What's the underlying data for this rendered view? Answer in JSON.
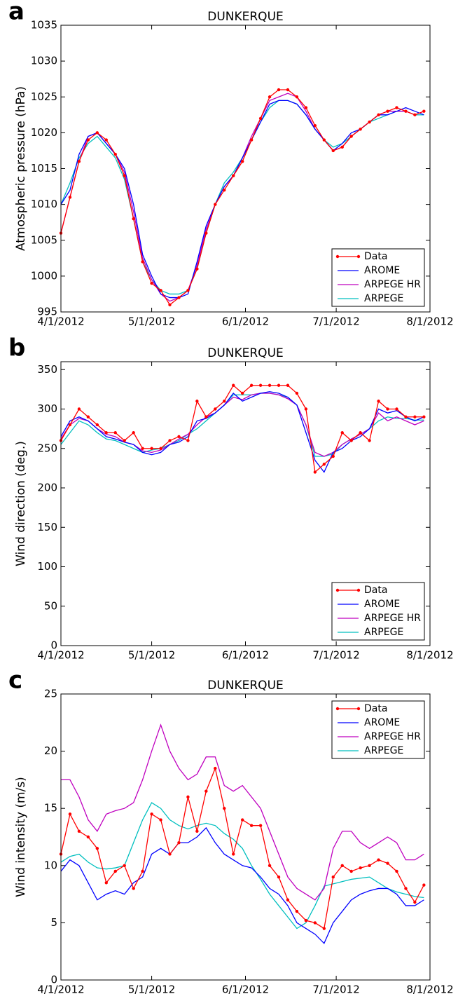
{
  "chart_data": [
    {
      "type": "line",
      "panel_label": "a",
      "title": "DUNKERQUE",
      "y_label": "Atmospheric pressure (hPa)",
      "x": [
        0,
        3,
        6,
        9,
        12,
        15,
        18,
        21,
        24,
        27,
        30,
        33,
        36,
        39,
        42,
        45,
        48,
        51,
        54,
        57,
        60,
        63,
        66,
        69,
        72,
        75,
        78,
        81,
        84,
        87,
        90,
        93,
        96,
        99,
        102,
        105,
        108,
        111,
        114,
        117,
        120
      ],
      "xlim": [
        0,
        122
      ],
      "xticks": [
        {
          "value": 0,
          "label": "4/1/2012"
        },
        {
          "value": 30,
          "label": "5/1/2012"
        },
        {
          "value": 61,
          "label": "6/1/2012"
        },
        {
          "value": 91,
          "label": "7/1/2012"
        },
        {
          "value": 122,
          "label": "8/1/2012"
        }
      ],
      "ylim": [
        995,
        1035
      ],
      "yticks": [
        995,
        1000,
        1005,
        1010,
        1015,
        1020,
        1025,
        1030,
        1035
      ],
      "grid": false,
      "legend": "lower right",
      "series": [
        {
          "name": "Data",
          "color": "#ff0000",
          "markers": true,
          "values": [
            1006,
            1011,
            1016,
            1019,
            1020,
            1019,
            1017,
            1014,
            1008,
            1002,
            999,
            998,
            996,
            997,
            998,
            1001,
            1006,
            1010,
            1012,
            1014,
            1016,
            1019,
            1022,
            1025,
            1026,
            1026,
            1025,
            1023.5,
            1021,
            1019,
            1017.5,
            1018,
            1019.5,
            1020.5,
            1021.5,
            1022.5,
            1023,
            1023.5,
            1023,
            1022.5,
            1023
          ]
        },
        {
          "name": "AROME",
          "color": "#0000ff",
          "values": [
            1010,
            1012,
            1017,
            1019.5,
            1020,
            1018.5,
            1017,
            1015,
            1010,
            1003,
            1000,
            997.5,
            997,
            997,
            997.5,
            1002,
            1007,
            1010,
            1012.5,
            1014,
            1016.5,
            1019,
            1021.5,
            1024,
            1024.5,
            1024.5,
            1024,
            1022.5,
            1020.5,
            1019,
            1017.5,
            1018.5,
            1020,
            1020.5,
            1021.5,
            1022.5,
            1022.5,
            1023,
            1023.5,
            1023,
            1022.5
          ]
        },
        {
          "name": "ARPEGE HR",
          "color": "#bf00bf",
          "values": [
            1006,
            1011,
            1016,
            1019.5,
            1020,
            1018.5,
            1017,
            1014.5,
            1009,
            1002.5,
            999.5,
            997.5,
            996.5,
            997,
            998,
            1001.5,
            1006.5,
            1010,
            1012.5,
            1014,
            1016.5,
            1019.5,
            1022,
            1024.5,
            1025,
            1025.5,
            1025,
            1023,
            1020.5,
            1019,
            1017.5,
            1018,
            1019.5,
            1020.5,
            1021.5,
            1022.5,
            1023,
            1023,
            1023,
            1022.5,
            1023
          ]
        },
        {
          "name": "ARPEGE",
          "color": "#00bfbf",
          "values": [
            1010,
            1013,
            1016.5,
            1018.5,
            1019.5,
            1018,
            1016.5,
            1013.5,
            1008,
            1002,
            999.5,
            998,
            997.5,
            997.5,
            998,
            1001,
            1006,
            1010,
            1013,
            1014.5,
            1016.5,
            1019,
            1021.5,
            1023.5,
            1024.5,
            1024.5,
            1024,
            1022.5,
            1020.5,
            1019,
            1018,
            1018.5,
            1019.5,
            1020.5,
            1021.5,
            1022,
            1022.5,
            1023,
            1023,
            1022.5,
            1022.5
          ]
        }
      ]
    },
    {
      "type": "line",
      "panel_label": "b",
      "title": "DUNKERQUE",
      "y_label": "Wind direction (deg.)",
      "x": [
        0,
        3,
        6,
        9,
        12,
        15,
        18,
        21,
        24,
        27,
        30,
        33,
        36,
        39,
        42,
        45,
        48,
        51,
        54,
        57,
        60,
        63,
        66,
        69,
        72,
        75,
        78,
        81,
        84,
        87,
        90,
        93,
        96,
        99,
        102,
        105,
        108,
        111,
        114,
        117,
        120
      ],
      "xlim": [
        0,
        122
      ],
      "xticks": [
        {
          "value": 0,
          "label": "4/1/2012"
        },
        {
          "value": 30,
          "label": "5/1/2012"
        },
        {
          "value": 61,
          "label": "6/1/2012"
        },
        {
          "value": 91,
          "label": "7/1/2012"
        },
        {
          "value": 122,
          "label": "8/1/2012"
        }
      ],
      "ylim": [
        0,
        360
      ],
      "yticks": [
        0,
        50,
        100,
        150,
        200,
        250,
        300,
        350
      ],
      "grid": false,
      "legend": "lower right",
      "series": [
        {
          "name": "Data",
          "color": "#ff0000",
          "markers": true,
          "values": [
            260,
            280,
            300,
            290,
            280,
            270,
            270,
            260,
            270,
            250,
            250,
            250,
            260,
            265,
            260,
            310,
            290,
            300,
            310,
            330,
            320,
            330,
            330,
            330,
            330,
            330,
            320,
            300,
            220,
            230,
            240,
            270,
            260,
            270,
            260,
            310,
            300,
            300,
            290,
            290,
            290
          ]
        },
        {
          "name": "AROME",
          "color": "#0000ff",
          "values": [
            265,
            285,
            290,
            285,
            275,
            265,
            262,
            258,
            255,
            245,
            242,
            245,
            255,
            258,
            265,
            285,
            288,
            295,
            305,
            320,
            310,
            315,
            320,
            322,
            320,
            315,
            305,
            270,
            235,
            220,
            245,
            250,
            260,
            265,
            275,
            300,
            295,
            298,
            290,
            285,
            290
          ]
        },
        {
          "name": "ARPEGE HR",
          "color": "#bf00bf",
          "values": [
            262,
            280,
            288,
            285,
            275,
            268,
            265,
            258,
            255,
            247,
            245,
            248,
            255,
            262,
            268,
            280,
            290,
            295,
            305,
            315,
            312,
            318,
            320,
            320,
            318,
            313,
            305,
            280,
            245,
            240,
            245,
            255,
            262,
            268,
            275,
            295,
            285,
            290,
            285,
            280,
            285
          ]
        },
        {
          "name": "ARPEGE",
          "color": "#00bfbf",
          "values": [
            255,
            270,
            285,
            280,
            270,
            262,
            260,
            255,
            250,
            245,
            248,
            250,
            255,
            260,
            268,
            275,
            285,
            295,
            305,
            318,
            318,
            318,
            320,
            320,
            318,
            315,
            305,
            280,
            240,
            240,
            243,
            255,
            262,
            268,
            275,
            285,
            290,
            288,
            288,
            286,
            286
          ]
        }
      ]
    },
    {
      "type": "line",
      "panel_label": "c",
      "title": "DUNKERQUE",
      "y_label": "Wind intensity (m/s)",
      "x": [
        0,
        3,
        6,
        9,
        12,
        15,
        18,
        21,
        24,
        27,
        30,
        33,
        36,
        39,
        42,
        45,
        48,
        51,
        54,
        57,
        60,
        63,
        66,
        69,
        72,
        75,
        78,
        81,
        84,
        87,
        90,
        93,
        96,
        99,
        102,
        105,
        108,
        111,
        114,
        117,
        120
      ],
      "xlim": [
        0,
        122
      ],
      "xticks": [
        {
          "value": 0,
          "label": "4/1/2012"
        },
        {
          "value": 30,
          "label": "5/1/2012"
        },
        {
          "value": 61,
          "label": "6/1/2012"
        },
        {
          "value": 91,
          "label": "7/1/2012"
        },
        {
          "value": 122,
          "label": "8/1/2012"
        }
      ],
      "ylim": [
        0,
        25
      ],
      "yticks": [
        0,
        5,
        10,
        15,
        20,
        25
      ],
      "grid": false,
      "legend": "upper right",
      "series": [
        {
          "name": "Data",
          "color": "#ff0000",
          "markers": true,
          "values": [
            11,
            14.5,
            13,
            12.5,
            11.5,
            8.5,
            9.5,
            10,
            8,
            9.5,
            14.5,
            14,
            11,
            12,
            16,
            13,
            16.5,
            18.5,
            15,
            11,
            14,
            13.5,
            13.5,
            10,
            9,
            7,
            6,
            5.2,
            5,
            4.5,
            9,
            10,
            9.5,
            9.8,
            10,
            10.5,
            10.2,
            9.5,
            8,
            6.8,
            8.3
          ]
        },
        {
          "name": "AROME",
          "color": "#0000ff",
          "values": [
            9.5,
            10.5,
            10,
            8.5,
            7,
            7.5,
            7.8,
            7.5,
            8.5,
            9,
            11,
            11.5,
            11,
            12,
            12,
            12.5,
            13.3,
            12,
            11,
            10.5,
            10,
            9.8,
            9,
            8,
            7.5,
            6.5,
            5,
            4.5,
            4,
            3.2,
            5,
            6,
            7,
            7.5,
            7.8,
            8,
            8,
            7.5,
            6.5,
            6.5,
            7
          ]
        },
        {
          "name": "ARPEGE HR",
          "color": "#bf00bf",
          "values": [
            17.5,
            17.5,
            16,
            14,
            13,
            14.5,
            14.8,
            15,
            15.5,
            17.5,
            20,
            22.3,
            20,
            18.5,
            17.5,
            18,
            19.5,
            19.5,
            17,
            16.5,
            17,
            16,
            15,
            13,
            11,
            9,
            8,
            7.5,
            7,
            8,
            11.5,
            13,
            13,
            12,
            11.5,
            12,
            12.5,
            12,
            10.5,
            10.5,
            11
          ]
        },
        {
          "name": "ARPEGE",
          "color": "#00bfbf",
          "values": [
            10.3,
            10.8,
            11,
            10.3,
            9.8,
            9.7,
            9.8,
            10,
            12,
            14,
            15.5,
            15,
            14,
            13.5,
            13.2,
            13.5,
            13.7,
            13.5,
            12.8,
            12.3,
            11.5,
            10,
            8.8,
            7.5,
            6.5,
            5.5,
            4.5,
            5,
            6.5,
            8.2,
            8.4,
            8.6,
            8.8,
            8.9,
            9,
            8.5,
            8,
            7.7,
            7.5,
            7.3,
            7.2
          ]
        }
      ]
    }
  ]
}
